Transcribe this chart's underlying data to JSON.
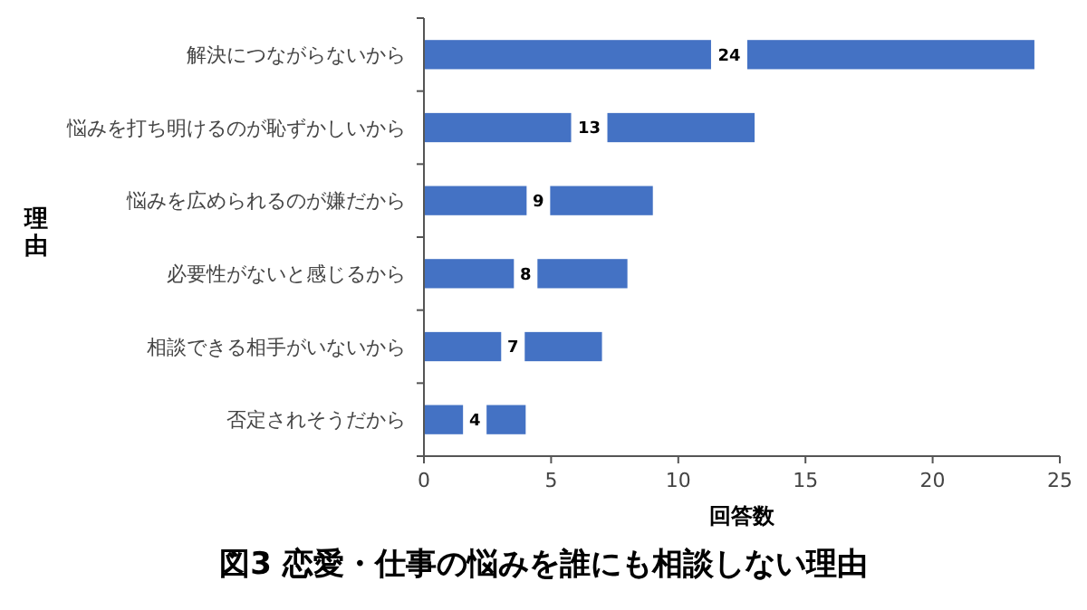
{
  "chart_data": {
    "type": "bar",
    "orientation": "horizontal",
    "title": "図3 恋愛・仕事の悩みを誰にも相談しない理由",
    "xlabel": "回答数",
    "ylabel": "理由",
    "categories": [
      "解決につながらないから",
      "悩みを打ち明けるのが恥ずかしいから",
      "悩みを広められるのが嫌だから",
      "必要性がないと感じるから",
      "相談できる相手がいないから",
      "否定されそうだから"
    ],
    "values": [
      24,
      13,
      9,
      8,
      7,
      4
    ],
    "color": "#4472c4",
    "xlim": [
      0,
      25
    ],
    "xticks": [
      0,
      5,
      10,
      15,
      20,
      25
    ],
    "data_labels": true
  }
}
